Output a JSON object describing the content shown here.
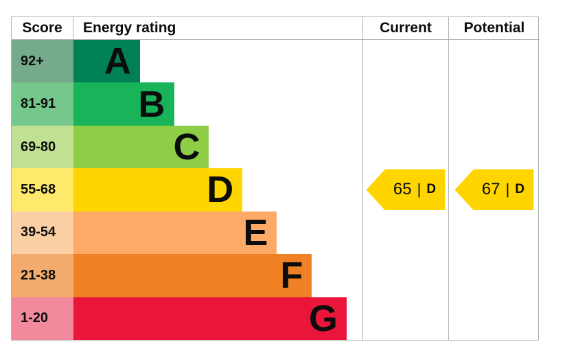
{
  "chart_data": {
    "type": "bar",
    "title": "Energy rating",
    "orientation": "horizontal",
    "categories": [
      "A",
      "B",
      "C",
      "D",
      "E",
      "F",
      "G"
    ],
    "score_ranges": [
      "92+",
      "81-91",
      "69-80",
      "55-68",
      "39-54",
      "21-38",
      "1-20"
    ],
    "bar_lengths_relative": [
      1,
      1.5,
      2,
      2.5,
      3,
      3.5,
      4
    ],
    "band_colors": [
      "#008054",
      "#19b459",
      "#8dce46",
      "#ffd500",
      "#fcaa65",
      "#ef8023",
      "#e9153b"
    ],
    "markers": [
      {
        "label": "Current",
        "value": 65,
        "band": "D"
      },
      {
        "label": "Potential",
        "value": 67,
        "band": "D"
      }
    ],
    "legend_position": "none",
    "grid": false
  },
  "table": {
    "header": {
      "score": "Score",
      "energy_rating": "Energy rating",
      "current": "Current",
      "potential": "Potential"
    },
    "bands": [
      {
        "score": "92+",
        "letter": "A",
        "color": "#008054",
        "tint": "#76aa8c",
        "width": "23%"
      },
      {
        "score": "81-91",
        "letter": "B",
        "color": "#19b459",
        "tint": "#76c78b",
        "width": "34.8%"
      },
      {
        "score": "69-80",
        "letter": "C",
        "color": "#8dce46",
        "tint": "#c1e094",
        "width": "46.9%"
      },
      {
        "score": "55-68",
        "letter": "D",
        "color": "#ffd500",
        "tint": "#ffe96b",
        "width": "58.5%"
      },
      {
        "score": "39-54",
        "letter": "E",
        "color": "#fcaa65",
        "tint": "#fbcfa4",
        "width": "70.4%"
      },
      {
        "score": "21-38",
        "letter": "F",
        "color": "#ef8023",
        "tint": "#f4ac6e",
        "width": "82.5%"
      },
      {
        "score": "1-20",
        "letter": "G",
        "color": "#e9153b",
        "tint": "#f08a9c",
        "width": "94.5%"
      }
    ],
    "current": {
      "value": "65",
      "divider": "|",
      "band": "D",
      "arrow_color": "#ffd500"
    },
    "potential": {
      "value": "67",
      "divider": "|",
      "band": "D",
      "arrow_color": "#ffd500"
    }
  }
}
